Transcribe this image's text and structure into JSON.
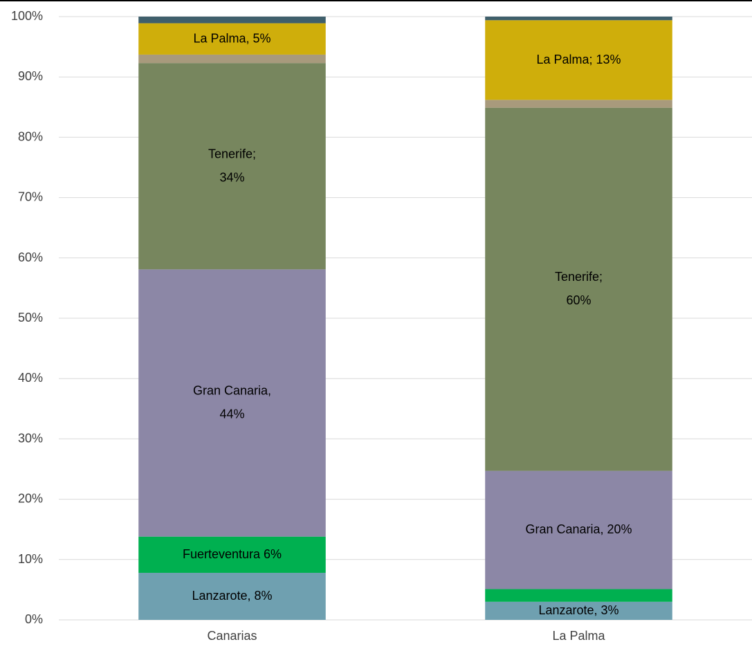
{
  "chart_data": {
    "type": "stacked_bar",
    "categories": [
      "Canarias",
      "La Palma"
    ],
    "series": [
      {
        "name": "Lanzarote",
        "color": "#6fa0b0",
        "values": [
          7.8,
          3.0
        ],
        "value_labels": [
          "Lanzarote, 8%",
          "Lanzarote, 3%"
        ]
      },
      {
        "name": "Fuerteventura",
        "color": "#00b050",
        "values": [
          6.0,
          2.1
        ],
        "value_labels": [
          "Fuerteventura 6%",
          null
        ]
      },
      {
        "name": "Gran Canaria",
        "color": "#8c87a6",
        "values": [
          44.3,
          19.6
        ],
        "value_labels": [
          "Gran Canaria,\n44%",
          "Gran Canaria, 20%"
        ]
      },
      {
        "name": "Tenerife",
        "color": "#77865e",
        "values": [
          34.2,
          60.2
        ],
        "value_labels": [
          "Tenerife;\n34%",
          "Tenerife;\n60%"
        ]
      },
      {
        "color": "#a89a7c",
        "values": [
          1.4,
          1.3
        ]
      },
      {
        "name": "La Palma",
        "color": "#cfae0b",
        "values": [
          5.2,
          13.2
        ],
        "value_labels": [
          "La Palma, 5%",
          "La Palma; 13%"
        ]
      },
      {
        "color": "#3f5f6b",
        "values": [
          1.1,
          0.6
        ]
      }
    ],
    "ylim": [
      0,
      100
    ],
    "yticks": [
      {
        "value": 0,
        "label": "0%"
      },
      {
        "value": 10,
        "label": "10%"
      },
      {
        "value": 20,
        "label": "20%"
      },
      {
        "value": 30,
        "label": "30%"
      },
      {
        "value": 40,
        "label": "40%"
      },
      {
        "value": 50,
        "label": "50%"
      },
      {
        "value": 60,
        "label": "60%"
      },
      {
        "value": 70,
        "label": "70%"
      },
      {
        "value": 80,
        "label": "80%"
      },
      {
        "value": 90,
        "label": "90%"
      },
      {
        "value": 100,
        "label": "100%"
      }
    ],
    "grid": true
  }
}
